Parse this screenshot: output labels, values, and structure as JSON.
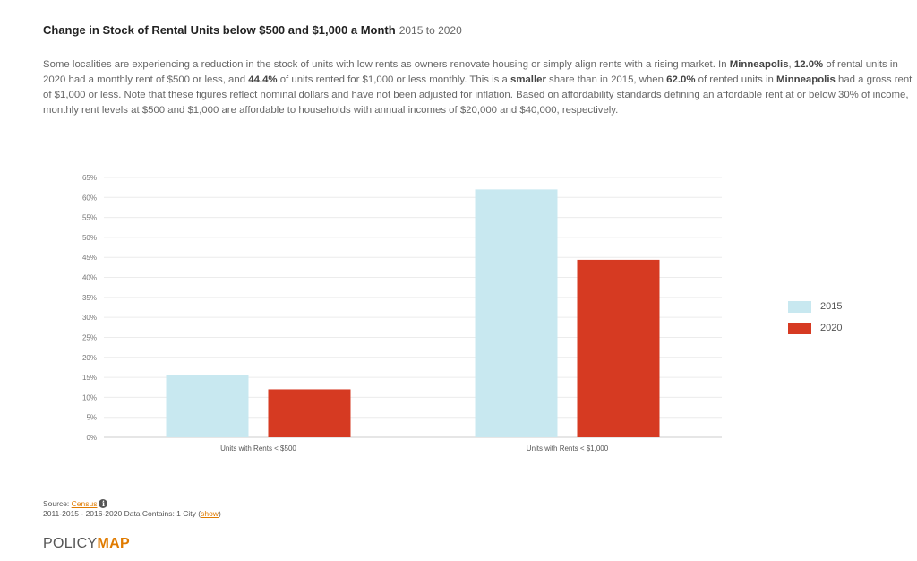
{
  "header": {
    "title": "Change in Stock of Rental Units below $500 and $1,000 a Month",
    "period": "2015 to 2020"
  },
  "description": {
    "p1": "Some localities are experiencing a reduction in the stock of units with low rents as owners renovate housing or simply align rents with a rising market. In ",
    "city1": "Minneapolis",
    "p2": ", ",
    "val1": "12.0%",
    "p3": " of rental units in 2020 had a monthly rent of $500 or less, and ",
    "val2": "44.4%",
    "p4": " of units rented for $1,000 or less monthly. This is a ",
    "cmp": "smaller",
    "p5": " share than in 2015, when ",
    "val3": "62.0%",
    "p6": " of rented units in ",
    "city2": "Minneapolis",
    "p7": " had a gross rent of $1,000 or less. Note that these figures reflect nominal dollars and have not been adjusted for inflation. Based on affordability standards defining an affordable rent at or below 30% of income, monthly rent levels at $500 and $1,000 are affordable to households with annual incomes of $20,000 and $40,000, respectively."
  },
  "chart_data": {
    "type": "bar",
    "categories": [
      "Units with Rents < $500",
      "Units with Rents < $1,000"
    ],
    "series": [
      {
        "name": "2015",
        "values": [
          15.6,
          62.0
        ],
        "color": "#c8e8f0"
      },
      {
        "name": "2020",
        "values": [
          12.0,
          44.4
        ],
        "color": "#d63a22"
      }
    ],
    "yticks": [
      "0%",
      "5%",
      "10%",
      "15%",
      "20%",
      "25%",
      "30%",
      "35%",
      "40%",
      "45%",
      "50%",
      "55%",
      "60%",
      "65%"
    ],
    "ylim": [
      0,
      65
    ],
    "grid": true,
    "legend_position": "right"
  },
  "source": {
    "label": "Source: ",
    "link": "Census",
    "info_icon": "info-icon",
    "line2_prefix": "2011-2015 - 2016-2020 Data Contains: 1 City (",
    "show_link": "show",
    "line2_suffix": ")"
  },
  "logo": {
    "part1": "POLICY",
    "part2": "MAP"
  }
}
